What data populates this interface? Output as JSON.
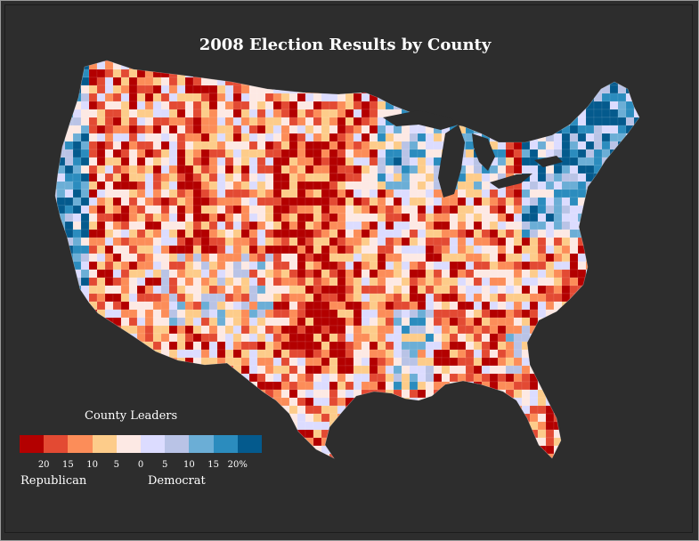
{
  "title": "2008 Election Results by County",
  "legend": {
    "title": "County Leaders",
    "colors": [
      "#b30000",
      "#e34a33",
      "#fc8d59",
      "#fdcc8a",
      "#fde9e4",
      "#dcdcff",
      "#b9c3e6",
      "#6baed6",
      "#2b8cbe",
      "#045a8d"
    ],
    "ticks": [
      "20",
      "15",
      "10",
      "5",
      "0",
      "5",
      "10",
      "15",
      "20%"
    ],
    "left_label": "Republican",
    "right_label": "Democrat"
  }
}
